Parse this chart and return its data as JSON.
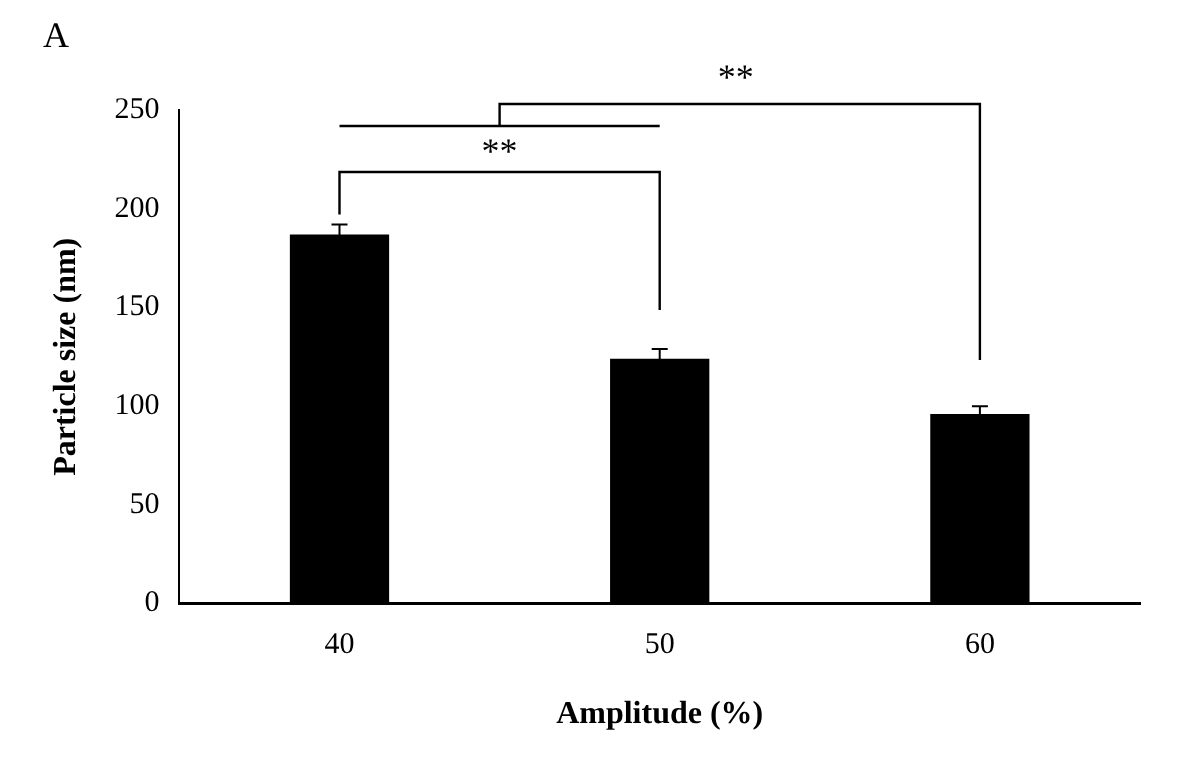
{
  "chart_data": {
    "type": "bar",
    "categories": [
      "40",
      "50",
      "60"
    ],
    "values": [
      187,
      124,
      96
    ],
    "errors": [
      5,
      5,
      4
    ],
    "color": "#000000",
    "xlabel": "Amplitude (%)",
    "ylabel": "Particle size (nm)",
    "ylim": [
      0,
      250
    ],
    "yticks": [
      0,
      50,
      100,
      150,
      200,
      250
    ],
    "grid": false,
    "legend": false,
    "annotations": [
      "A",
      "**",
      "**"
    ]
  }
}
